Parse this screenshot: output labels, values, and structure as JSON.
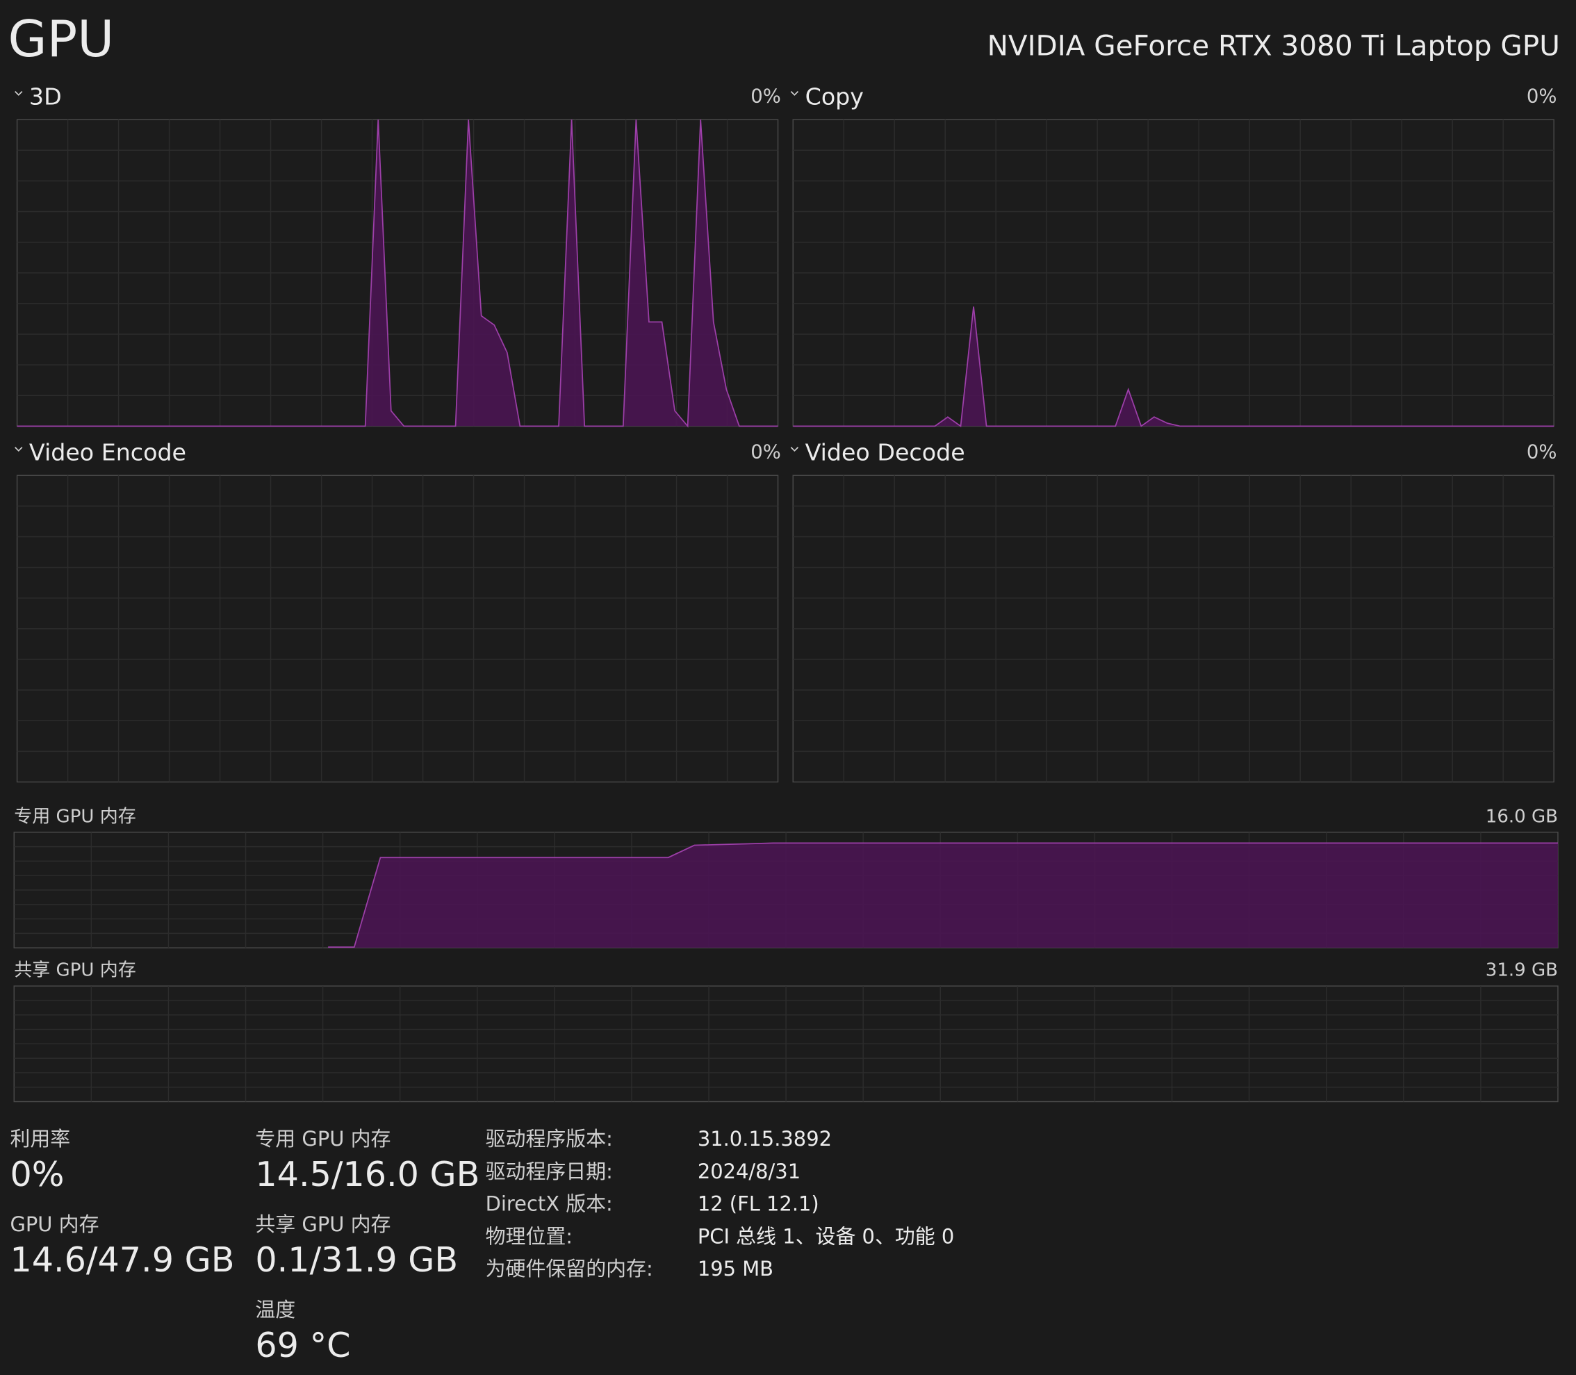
{
  "header": {
    "title": "GPU",
    "device": "NVIDIA GeForce RTX 3080 Ti Laptop GPU"
  },
  "engines": [
    {
      "name": "3D",
      "value_label": "0%",
      "ylim": [
        0,
        100
      ],
      "values": [
        0,
        0,
        0,
        0,
        0,
        0,
        0,
        0,
        0,
        0,
        0,
        0,
        0,
        0,
        0,
        0,
        0,
        0,
        0,
        0,
        0,
        0,
        0,
        0,
        0,
        0,
        0,
        0,
        100,
        5,
        0,
        0,
        0,
        0,
        0,
        100,
        36,
        33,
        24,
        0,
        0,
        0,
        0,
        100,
        0,
        0,
        0,
        0,
        100,
        34,
        34,
        5,
        0,
        100,
        34,
        12,
        0,
        0,
        0,
        0
      ]
    },
    {
      "name": "Copy",
      "value_label": "0%",
      "ylim": [
        0,
        100
      ],
      "values": [
        0,
        0,
        0,
        0,
        0,
        0,
        0,
        0,
        0,
        0,
        0,
        0,
        3,
        0,
        39,
        0,
        0,
        0,
        0,
        0,
        0,
        0,
        0,
        0,
        0,
        0,
        12,
        0,
        3,
        1,
        0,
        0,
        0,
        0,
        0,
        0,
        0,
        0,
        0,
        0,
        0,
        0,
        0,
        0,
        0,
        0,
        0,
        0,
        0,
        0,
        0,
        0,
        0,
        0,
        0,
        0,
        0,
        0,
        0,
        0
      ]
    },
    {
      "name": "Video Encode",
      "value_label": "0%"
    },
    {
      "name": "Video Decode",
      "value_label": "0%"
    }
  ],
  "memory_graphs": [
    {
      "name": "专用 GPU 内存",
      "max_label": "16.0 GB",
      "ylim": [
        0,
        16
      ],
      "values": [
        null,
        null,
        null,
        null,
        null,
        null,
        null,
        null,
        null,
        null,
        null,
        null,
        0.1,
        0.1,
        12.5,
        12.5,
        12.5,
        12.5,
        12.5,
        12.5,
        12.5,
        12.5,
        12.5,
        12.5,
        12.5,
        12.5,
        14.2,
        14.3,
        14.4,
        14.5,
        14.5,
        14.5,
        14.5,
        14.5,
        14.5,
        14.5,
        14.5,
        14.5,
        14.5,
        14.5,
        14.5,
        14.5,
        14.5,
        14.5,
        14.5,
        14.5,
        14.5,
        14.5,
        14.5,
        14.5,
        14.5,
        14.5,
        14.5,
        14.5,
        14.5,
        14.5,
        14.5,
        14.5,
        14.5,
        14.5
      ]
    },
    {
      "name": "共享 GPU 内存",
      "max_label": "31.9 GB"
    }
  ],
  "stats": [
    {
      "label": "利用率",
      "value": "0%"
    },
    {
      "label": "GPU 内存",
      "value": "14.6/47.9 GB"
    },
    {
      "label": "专用 GPU 内存",
      "value": "14.5/16.0 GB"
    },
    {
      "label": "共享 GPU 内存",
      "value": "0.1/31.9 GB"
    },
    {
      "label": "温度",
      "value": "69 °C"
    }
  ],
  "properties": [
    {
      "label": "驱动程序版本:",
      "value": "31.0.15.3892"
    },
    {
      "label": "驱动程序日期:",
      "value": "2024/8/31"
    },
    {
      "label": "DirectX 版本:",
      "value": "12 (FL 12.1)"
    },
    {
      "label": "物理位置:",
      "value": "PCI 总线 1、设备 0、功能 0"
    },
    {
      "label": "为硬件保留的内存:",
      "value": "195 MB"
    }
  ]
}
